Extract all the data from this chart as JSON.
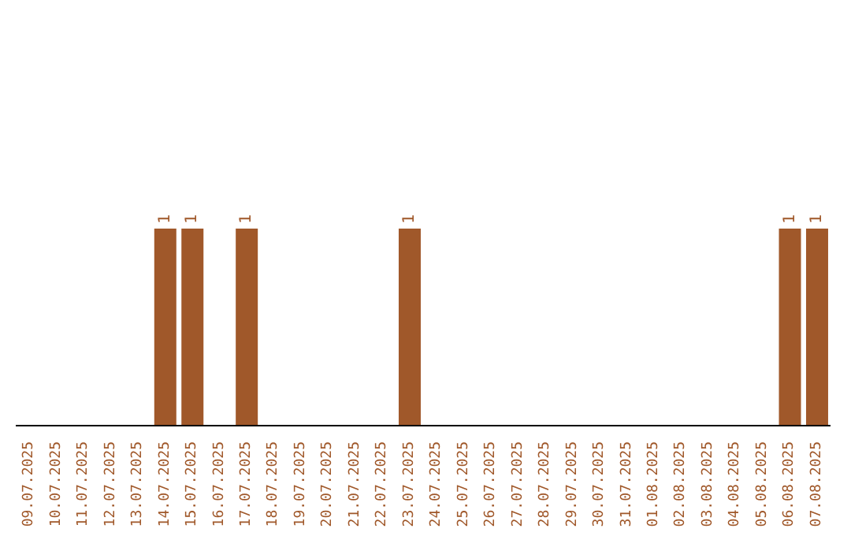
{
  "chart_data": {
    "type": "bar",
    "categories": [
      "09.07.2025",
      "10.07.2025",
      "11.07.2025",
      "12.07.2025",
      "13.07.2025",
      "14.07.2025",
      "15.07.2025",
      "16.07.2025",
      "17.07.2025",
      "18.07.2025",
      "19.07.2025",
      "20.07.2025",
      "21.07.2025",
      "22.07.2025",
      "23.07.2025",
      "24.07.2025",
      "25.07.2025",
      "26.07.2025",
      "27.07.2025",
      "28.07.2025",
      "29.07.2025",
      "30.07.2025",
      "31.07.2025",
      "01.08.2025",
      "02.08.2025",
      "03.08.2025",
      "04.08.2025",
      "05.08.2025",
      "06.08.2025",
      "07.08.2025"
    ],
    "values": [
      0,
      0,
      0,
      0,
      0,
      1,
      1,
      0,
      1,
      0,
      0,
      0,
      0,
      0,
      1,
      0,
      0,
      0,
      0,
      0,
      0,
      0,
      0,
      0,
      0,
      0,
      0,
      0,
      1,
      1
    ],
    "value_labels": [
      null,
      null,
      null,
      null,
      null,
      "1",
      "1",
      null,
      "1",
      null,
      null,
      null,
      null,
      null,
      "1",
      null,
      null,
      null,
      null,
      null,
      null,
      null,
      null,
      null,
      null,
      null,
      null,
      null,
      "1",
      "1"
    ],
    "color": "#a0582a",
    "grid": false,
    "legend": false
  }
}
